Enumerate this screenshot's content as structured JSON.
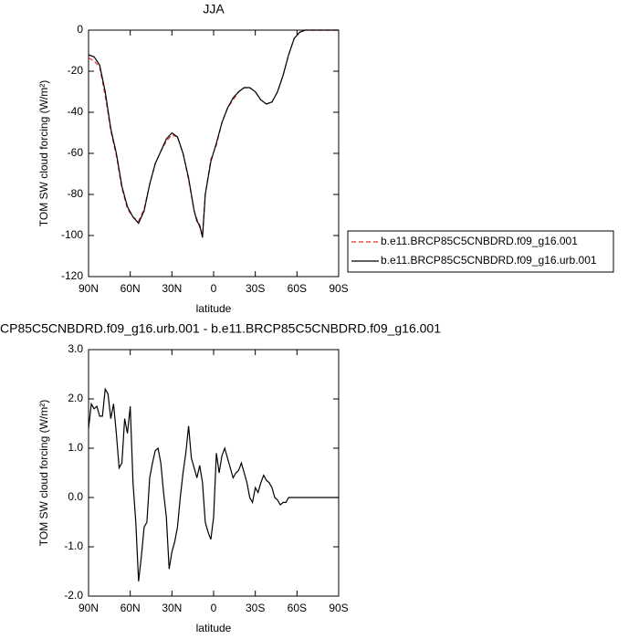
{
  "chart_data": [
    {
      "type": "line",
      "title": "JJA",
      "x_label": "latitude",
      "y_label": "TOM SW cloud forcing (W/m²)",
      "x": [
        90,
        86,
        82,
        78,
        74,
        70,
        66,
        62,
        58,
        54,
        50,
        46,
        42,
        38,
        34,
        30,
        26,
        22,
        18,
        14,
        12,
        10,
        8,
        6,
        2,
        -2,
        -6,
        -10,
        -14,
        -18,
        -22,
        -26,
        -30,
        -34,
        -38,
        -42,
        -46,
        -50,
        -54,
        -58,
        -62,
        -66,
        -70,
        -74,
        -78,
        -82,
        -86,
        -90
      ],
      "series": [
        {
          "name": "b.e11.BRCP85C5CNBDRD.f09_g16.001",
          "color": "#e0302a",
          "line_style": "dashed",
          "values": [
            -13.5,
            -15,
            -18,
            -32,
            -49,
            -61,
            -77,
            -87,
            -91,
            -93,
            -87,
            -75,
            -65,
            -59,
            -54,
            -51,
            -52,
            -60,
            -73,
            -88,
            -92,
            -96,
            -100,
            -80,
            -63,
            -56,
            -45,
            -38,
            -34,
            -30,
            -28,
            -28,
            -30,
            -34,
            -36,
            -35,
            -30,
            -22,
            -12,
            -4,
            -1,
            0,
            0,
            0,
            0,
            0,
            0,
            0
          ]
        },
        {
          "name": "b.e11.BRCP85C5CNBDRD.f09_g16.urb.001",
          "color": "#000000",
          "line_style": "solid",
          "values": [
            -12,
            -13,
            -17,
            -30,
            -48,
            -60,
            -76,
            -86,
            -91,
            -94,
            -88,
            -75,
            -65,
            -59,
            -53,
            -50,
            -52,
            -60,
            -72,
            -88,
            -93,
            -95,
            -101,
            -80,
            -64,
            -55,
            -45,
            -38,
            -33,
            -30,
            -28,
            -28,
            -30,
            -34,
            -36,
            -35,
            -30,
            -22,
            -12,
            -4,
            -1,
            0,
            0,
            0,
            0,
            0,
            0,
            0
          ]
        }
      ],
      "xlim": [
        90,
        -90
      ],
      "xticks": [
        {
          "value": 90,
          "label": "90N"
        },
        {
          "value": 60,
          "label": "60N"
        },
        {
          "value": 30,
          "label": "30N"
        },
        0,
        {
          "value": -30,
          "label": "30S"
        },
        {
          "value": -60,
          "label": "60S"
        },
        {
          "value": -90,
          "label": "90S"
        }
      ],
      "ylim": [
        -120,
        0
      ],
      "yticks": [
        -120,
        -100,
        -80,
        -60,
        -40,
        -20,
        0
      ],
      "legend": "outside-right-bottom"
    },
    {
      "type": "line",
      "title": "CP85C5CNBDRD.f09_g16.urb.001 - b.e11.BRCP85C5CNBDRD.f09_g16.001",
      "x_label": "latitude",
      "y_label": "TOM SW cloud forcing (W/m²)",
      "x": [
        90,
        88,
        86,
        84,
        82,
        80,
        78,
        76,
        74,
        72,
        70,
        68,
        66,
        64,
        62,
        60,
        58,
        56,
        54,
        52,
        50,
        48,
        46,
        44,
        42,
        40,
        38,
        36,
        34,
        32,
        30,
        28,
        26,
        24,
        22,
        20,
        18,
        16,
        14,
        12,
        10,
        8,
        6,
        4,
        2,
        0,
        -2,
        -4,
        -6,
        -8,
        -10,
        -12,
        -14,
        -16,
        -18,
        -20,
        -22,
        -24,
        -26,
        -28,
        -30,
        -32,
        -34,
        -36,
        -38,
        -40,
        -42,
        -44,
        -46,
        -48,
        -50,
        -52,
        -54,
        -56,
        -58,
        -62,
        -66,
        -70,
        -74,
        -78,
        -82,
        -86,
        -90
      ],
      "series": [
        {
          "color": "#000000",
          "line_style": "solid",
          "values": [
            1.4,
            1.9,
            1.8,
            1.85,
            1.65,
            1.65,
            2.2,
            2.1,
            1.6,
            1.9,
            1.3,
            0.6,
            0.7,
            1.6,
            1.3,
            1.85,
            0.3,
            -0.5,
            -1.7,
            -1.2,
            -0.6,
            -0.5,
            0.4,
            0.7,
            0.95,
            1.0,
            0.7,
            0.1,
            -0.4,
            -1.45,
            -1.1,
            -0.9,
            -0.6,
            0.0,
            0.5,
            0.9,
            1.45,
            0.8,
            0.6,
            0.4,
            0.65,
            0.3,
            -0.5,
            -0.7,
            -0.85,
            -0.4,
            0.9,
            0.5,
            0.85,
            1.0,
            0.8,
            0.6,
            0.4,
            0.5,
            0.55,
            0.7,
            0.5,
            0.3,
            0.0,
            -0.1,
            0.2,
            0.1,
            0.3,
            0.45,
            0.35,
            0.3,
            0.2,
            0.0,
            -0.05,
            -0.15,
            -0.1,
            -0.1,
            0.0,
            0.0,
            0.0,
            0,
            0,
            0,
            0,
            0,
            0,
            0,
            0
          ]
        }
      ],
      "xlim": [
        90,
        -90
      ],
      "xticks": [
        {
          "value": 90,
          "label": "90N"
        },
        {
          "value": 60,
          "label": "60N"
        },
        {
          "value": 30,
          "label": "30N"
        },
        0,
        {
          "value": -30,
          "label": "30S"
        },
        {
          "value": -60,
          "label": "60S"
        },
        {
          "value": -90,
          "label": "90S"
        }
      ],
      "ylim": [
        -2,
        3
      ],
      "yticks": [
        {
          "value": -2,
          "label": "-2.0"
        },
        {
          "value": -1,
          "label": "-1.0"
        },
        {
          "value": 0,
          "label": "0.0"
        },
        {
          "value": 1,
          "label": "1.0"
        },
        {
          "value": 2,
          "label": "2.0"
        },
        {
          "value": 3,
          "label": "3.0"
        }
      ]
    }
  ]
}
